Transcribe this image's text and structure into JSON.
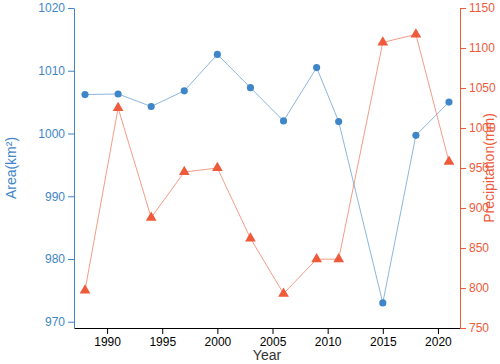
{
  "chart_data": {
    "type": "line",
    "x": [
      1988,
      1991,
      1994,
      1997,
      2000,
      2003,
      2006,
      2009,
      2011,
      2015,
      2018,
      2021
    ],
    "xlim": [
      1987,
      2022
    ],
    "xticks": [
      1990,
      1995,
      2000,
      2005,
      2010,
      2015,
      2020
    ],
    "x_label": "Year",
    "y_label": "Area(km²)",
    "y2_label": "Precipitation(mm)",
    "ylim": [
      969,
      1020
    ],
    "yticks": [
      970,
      980,
      990,
      1000,
      1010,
      1020
    ],
    "y2lim": [
      750,
      1150
    ],
    "y2ticks": [
      750,
      800,
      850,
      900,
      950,
      1000,
      1050,
      1100,
      1150
    ],
    "series": [
      {
        "color": "#3f86c8",
        "marker": "circle",
        "values": [
          1006.2,
          1006.3,
          1004.3,
          1006.8,
          1012.6,
          1007.3,
          1002.0,
          1010.5,
          1001.9,
          973.0,
          999.7,
          1005.0
        ]
      },
      {
        "color": "#ee5a3a",
        "marker": "triangle",
        "axis": "y2",
        "values": [
          797,
          1025,
          888,
          945,
          950,
          862,
          793,
          836,
          836,
          1107,
          1117,
          958
        ]
      }
    ]
  }
}
